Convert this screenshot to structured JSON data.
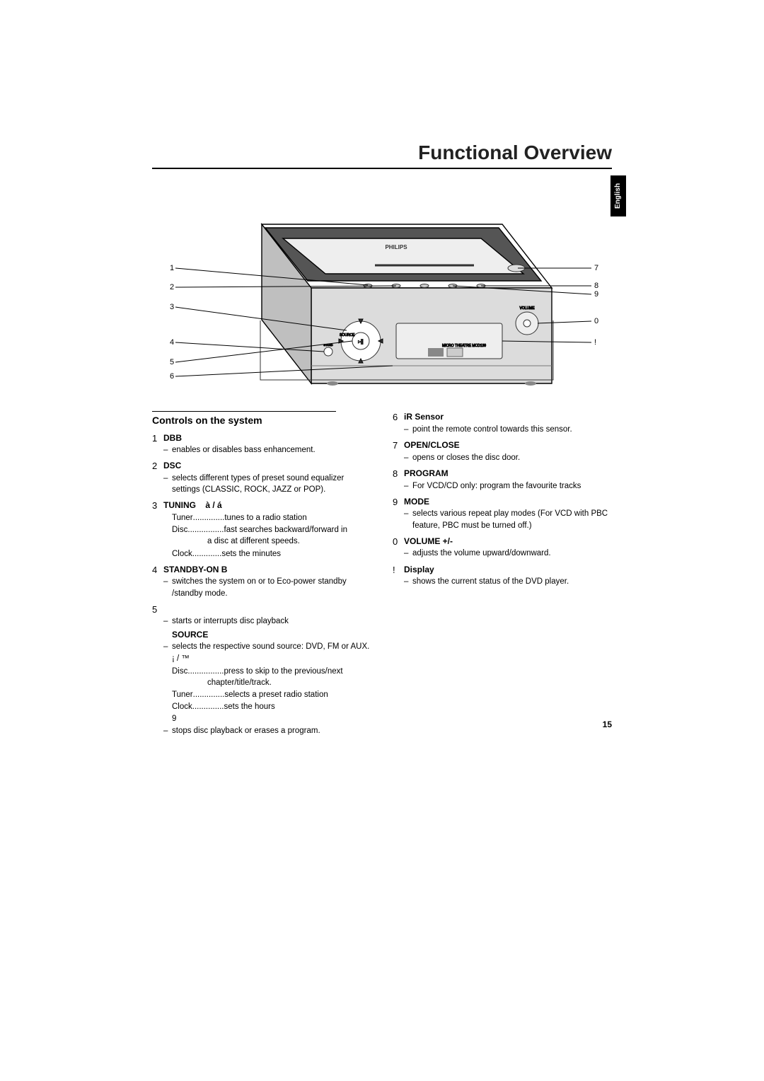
{
  "title": "Functional Overview",
  "lang_tab": "English",
  "page_number": "15",
  "diagram": {
    "left_labels": [
      "1",
      "2",
      "3",
      "4",
      "5",
      "6"
    ],
    "right_labels": [
      "7",
      "8",
      "9",
      "0",
      "!"
    ]
  },
  "left_col": {
    "section_title": "Controls on the system",
    "items": [
      {
        "num": "1",
        "label": "DBB",
        "lines": [
          {
            "dash": true,
            "text": "enables or disables bass enhancement."
          }
        ]
      },
      {
        "num": "2",
        "label": "DSC",
        "lines": [
          {
            "dash": true,
            "text": "selects different types of preset sound equalizer settings (CLASSIC, ROCK, JAZZ or POP)."
          }
        ]
      },
      {
        "num": "3",
        "label": "TUNING    à / á",
        "lines": [
          {
            "dots": true,
            "lbl": "Tuner",
            "dotfill": "..............",
            "val": "tunes to a radio station"
          },
          {
            "dots": true,
            "lbl": "Disc",
            "dotfill": "................",
            "val": " fast searches backward/forward in"
          },
          {
            "indent": true,
            "text": "a disc at different speeds."
          },
          {
            "dots": true,
            "lbl": "Clock",
            "dotfill": ".............",
            "val": "sets the minutes"
          }
        ]
      },
      {
        "num": "4",
        "label": "STANDBY-ON B",
        "lines": [
          {
            "dash": true,
            "text": "switches the system on or to Eco-power standby /standby mode."
          }
        ]
      },
      {
        "num": "5",
        "label": " ",
        "lines": [
          {
            "dash": true,
            "text": " starts or interrupts disc playback"
          },
          {
            "subbold": true,
            "text": "SOURCE"
          },
          {
            "dash": true,
            "text": "selects the respective sound source: DVD, FM or AUX."
          },
          {
            "plain": true,
            "text": "¡ / ™"
          },
          {
            "dots": true,
            "lbl": "Disc",
            "dotfill": "................",
            "val": "press to skip to the previous/next"
          },
          {
            "indent": true,
            "text": "chapter/title/track."
          },
          {
            "dots": true,
            "lbl": "Tuner",
            "dotfill": "..............",
            "val": "selects a preset radio station"
          },
          {
            "dots": true,
            "lbl": "Clock",
            "dotfill": "..............",
            "val": "sets the hours"
          },
          {
            "plain": true,
            "text": "9"
          },
          {
            "dash": true,
            "text": " stops disc playback or erases a program."
          }
        ]
      }
    ]
  },
  "right_col": {
    "items": [
      {
        "num": "6",
        "label": "iR Sensor",
        "lines": [
          {
            "dash": true,
            "text": "point the remote control towards this sensor."
          }
        ]
      },
      {
        "num": "7",
        "label": "OPEN/CLOSE",
        "lines": [
          {
            "dash": true,
            "text": "opens or closes the disc door."
          }
        ]
      },
      {
        "num": "8",
        "label": "PROGRAM",
        "lines": [
          {
            "dash": true,
            "html": true,
            "text": "For VCD/CD only: program the favourite tracks"
          }
        ]
      },
      {
        "num": "9",
        "label": "MODE",
        "lines": [
          {
            "dash": true,
            "text": "selects various repeat play modes (For VCD with PBC feature, PBC must be turned off.)"
          }
        ]
      },
      {
        "num": "0",
        "label": "VOLUME +/-",
        "lines": [
          {
            "dash": true,
            "text": "adjusts the volume upward/downward."
          }
        ]
      },
      {
        "num": "!",
        "label": "Display",
        "lines": [
          {
            "dash": true,
            "text": "shows the current status of the DVD player."
          }
        ]
      }
    ]
  }
}
